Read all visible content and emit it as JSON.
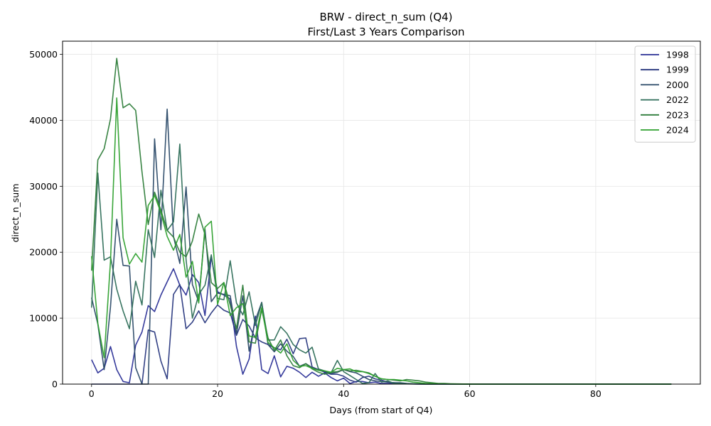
{
  "chart_data": {
    "type": "line",
    "title": "BRW - direct_n_sum (Q4)",
    "subtitle": "First/Last 3 Years Comparison",
    "xlabel": "Days (from start of Q4)",
    "ylabel": "direct_n_sum",
    "xlim": [
      -4.6,
      96.6
    ],
    "ylim": [
      0,
      52000
    ],
    "xticks": [
      "0",
      "20",
      "40",
      "60",
      "80"
    ],
    "yticks": [
      "0",
      "10000",
      "20000",
      "30000",
      "40000",
      "50000"
    ],
    "grid": true,
    "legend_position": "top-right",
    "series": [
      {
        "name": "1998",
        "color": "#2a2f96",
        "x": [
          0,
          1,
          2,
          3,
          4,
          5,
          6,
          7,
          8,
          9,
          10,
          11,
          12,
          13,
          14,
          15,
          16,
          17,
          18,
          19,
          20,
          21,
          22,
          23,
          24,
          25,
          26,
          27,
          28,
          29,
          30,
          31,
          32,
          33,
          34,
          35,
          36,
          37,
          38,
          39,
          40,
          41,
          42,
          43,
          44,
          45,
          46,
          47,
          48,
          49,
          50,
          51,
          52,
          53,
          54,
          55,
          56,
          57,
          58,
          59,
          60,
          61,
          62,
          63,
          64,
          65,
          66,
          67,
          68,
          69,
          70,
          71,
          72,
          73,
          74,
          75,
          76,
          77,
          78,
          79,
          80,
          81,
          82,
          83,
          84,
          85,
          86,
          87,
          88,
          89,
          90,
          91,
          92
        ],
        "y": [
          3700,
          1700,
          2400,
          5700,
          2200,
          400,
          200,
          5900,
          7900,
          11900,
          11000,
          13500,
          15500,
          17500,
          15000,
          13500,
          16600,
          15400,
          10400,
          19300,
          14000,
          13500,
          12900,
          5700,
          1500,
          3800,
          10300,
          2200,
          1600,
          4300,
          1100,
          2700,
          2400,
          1800,
          1000,
          1800,
          1200,
          1700,
          1000,
          500,
          900,
          100,
          400,
          400,
          200,
          300,
          100,
          100,
          50,
          50,
          30,
          20,
          10,
          10,
          0,
          0,
          0,
          0,
          0,
          0,
          0,
          0,
          0,
          0,
          0,
          0,
          0,
          0,
          0,
          0,
          0,
          0,
          0,
          0,
          0,
          0,
          0,
          0,
          0,
          0,
          0,
          0,
          0,
          0,
          0,
          0,
          0,
          0,
          0,
          0,
          0,
          0,
          0
        ]
      },
      {
        "name": "1999",
        "color": "#28377e",
        "x": [
          0,
          1,
          2,
          3,
          4,
          5,
          6,
          7,
          8,
          9,
          10,
          11,
          12,
          13,
          14,
          15,
          16,
          17,
          18,
          19,
          20,
          21,
          22,
          23,
          24,
          25,
          26,
          27,
          28,
          29,
          30,
          31,
          32,
          33,
          34,
          35,
          36,
          37,
          38,
          39,
          40,
          41,
          42,
          43,
          44,
          45,
          46,
          47,
          48,
          49,
          50,
          51,
          52,
          53,
          54,
          55,
          56,
          57,
          58,
          59,
          60,
          61,
          62,
          63,
          64,
          65,
          66,
          67,
          68,
          69,
          70,
          71,
          72,
          73,
          74,
          75,
          76,
          77,
          78,
          79,
          80,
          81,
          82,
          83,
          84,
          85,
          86,
          87,
          88,
          89,
          90,
          91,
          92
        ],
        "y": [
          0,
          0,
          0,
          0,
          0,
          0,
          0,
          0,
          0,
          8200,
          7900,
          3500,
          800,
          13600,
          15100,
          8400,
          9400,
          11100,
          9300,
          10800,
          12000,
          11200,
          10800,
          7400,
          9800,
          8800,
          7000,
          6400,
          6000,
          5500,
          5200,
          6800,
          4600,
          6900,
          7000,
          2600,
          2200,
          1800,
          1500,
          1500,
          1200,
          600,
          300,
          1000,
          1200,
          800,
          600,
          300,
          200,
          100,
          50,
          30,
          20,
          10,
          0,
          0,
          0,
          0,
          0,
          0,
          0,
          0,
          0,
          0,
          0,
          0,
          0,
          0,
          0,
          0,
          0,
          0,
          0,
          0,
          0,
          0,
          0,
          0,
          0,
          0,
          0,
          0,
          0,
          0,
          0,
          0,
          0,
          0,
          0,
          0,
          0,
          0,
          0
        ]
      },
      {
        "name": "2000",
        "color": "#2b4a68",
        "x": [
          0,
          1,
          2,
          3,
          4,
          5,
          6,
          7,
          8,
          9,
          10,
          11,
          12,
          13,
          14,
          15,
          16,
          17,
          18,
          19,
          20,
          21,
          22,
          23,
          24,
          25,
          26,
          27,
          28,
          29,
          30,
          31,
          32,
          33,
          34,
          35,
          36,
          37,
          38,
          39,
          40,
          41,
          42,
          43,
          44,
          45,
          46,
          47,
          48,
          49,
          50,
          51,
          52,
          53,
          54,
          55,
          56,
          57,
          58,
          59,
          60,
          61,
          62,
          63,
          64,
          65,
          66,
          67,
          68,
          69,
          70,
          71,
          72,
          73,
          74,
          75,
          76,
          77,
          78,
          79,
          80,
          81,
          82,
          83,
          84,
          85,
          86,
          87,
          88,
          89,
          90,
          91,
          92
        ],
        "y": [
          13100,
          9100,
          2200,
          11700,
          25000,
          18000,
          17900,
          2500,
          0,
          0,
          37200,
          23400,
          41700,
          22400,
          18300,
          29900,
          15100,
          12500,
          23500,
          12500,
          13800,
          13600,
          13400,
          7600,
          13400,
          5000,
          9700,
          12400,
          6000,
          4900,
          6100,
          5000,
          4200,
          2700,
          3100,
          2500,
          2100,
          1900,
          1600,
          1800,
          2200,
          1900,
          1700,
          1200,
          700,
          500,
          400,
          300,
          200,
          200,
          100,
          50,
          30,
          20,
          10,
          0,
          0,
          0,
          0,
          0,
          0,
          0,
          0,
          0,
          0,
          0,
          0,
          0,
          0,
          0,
          0,
          0,
          0,
          0,
          0,
          0,
          0,
          0,
          0,
          0,
          0,
          0,
          0,
          0,
          0,
          0,
          0,
          0,
          0,
          0,
          0,
          0,
          0
        ]
      },
      {
        "name": "2022",
        "color": "#2e6e58",
        "x": [
          0,
          1,
          2,
          3,
          4,
          5,
          6,
          7,
          8,
          9,
          10,
          11,
          12,
          13,
          14,
          15,
          16,
          17,
          18,
          19,
          20,
          21,
          22,
          23,
          24,
          25,
          26,
          27,
          28,
          29,
          30,
          31,
          32,
          33,
          34,
          35,
          36,
          37,
          38,
          39,
          40,
          41,
          42,
          43,
          44,
          45,
          46,
          47,
          48,
          49,
          50,
          51,
          52,
          53,
          54,
          55,
          56,
          57,
          58,
          59,
          60,
          61,
          62,
          63,
          64,
          65,
          66,
          67,
          68,
          69,
          70,
          71,
          72,
          73,
          74,
          75,
          76,
          77,
          78,
          79,
          80,
          81,
          82,
          83,
          84,
          85,
          86,
          87,
          88,
          89,
          90,
          91,
          92
        ],
        "y": [
          11600,
          32000,
          18800,
          19300,
          14400,
          11100,
          8400,
          15600,
          12000,
          23400,
          19200,
          29400,
          23300,
          24600,
          36400,
          18900,
          10000,
          13600,
          15000,
          19600,
          13000,
          12800,
          18700,
          12300,
          10500,
          14000,
          8900,
          12300,
          6700,
          6700,
          8700,
          7700,
          6000,
          5200,
          4700,
          5600,
          2300,
          2000,
          1700,
          3600,
          1900,
          1300,
          700,
          100,
          200,
          1600,
          300,
          500,
          100,
          100,
          50,
          30,
          20,
          10,
          0,
          0,
          0,
          0,
          0,
          0,
          0,
          0,
          0,
          0,
          0,
          0,
          0,
          0,
          0,
          0,
          0,
          0,
          0,
          0,
          0,
          0,
          0,
          0,
          0,
          0,
          0,
          0,
          0,
          0,
          0,
          0,
          0,
          0,
          0,
          0,
          0,
          0,
          0
        ]
      },
      {
        "name": "2023",
        "color": "#2e7d3a",
        "x": [
          0,
          1,
          2,
          3,
          4,
          5,
          6,
          7,
          8,
          9,
          10,
          11,
          12,
          13,
          14,
          15,
          16,
          17,
          18,
          19,
          20,
          21,
          22,
          23,
          24,
          25,
          26,
          27,
          28,
          29,
          30,
          31,
          32,
          33,
          34,
          35,
          36,
          37,
          38,
          39,
          40,
          41,
          42,
          43,
          44,
          45,
          46,
          47,
          48,
          49,
          50,
          51,
          52,
          53,
          54,
          55,
          56,
          57,
          58,
          59,
          60,
          61,
          62,
          63,
          64,
          65,
          66,
          67,
          68,
          69,
          70,
          71,
          72,
          73,
          74,
          75,
          76,
          77,
          78,
          79,
          80,
          81,
          82,
          83,
          84,
          85,
          86,
          87,
          88,
          89,
          90,
          91,
          92
        ],
        "y": [
          17200,
          34000,
          35700,
          40200,
          49400,
          41900,
          42500,
          41500,
          32200,
          24200,
          29100,
          26400,
          23300,
          22300,
          20000,
          19300,
          21700,
          25800,
          22700,
          15400,
          14500,
          15400,
          12000,
          8400,
          15000,
          6400,
          6200,
          11300,
          7000,
          5100,
          6700,
          4300,
          2800,
          2500,
          3100,
          2300,
          1800,
          1500,
          1800,
          1900,
          2200,
          2000,
          2100,
          1900,
          1700,
          1200,
          800,
          700,
          600,
          500,
          700,
          600,
          500,
          300,
          200,
          100,
          100,
          50,
          30,
          20,
          10,
          10,
          0,
          0,
          0,
          0,
          0,
          0,
          0,
          0,
          0,
          0,
          0,
          0,
          0,
          0,
          0,
          0,
          0,
          0,
          0,
          0,
          0,
          0,
          0,
          0,
          0,
          0,
          0,
          0,
          0,
          0,
          0
        ]
      },
      {
        "name": "2024",
        "color": "#2ea02e",
        "x": [
          0,
          1,
          2,
          3,
          4,
          5,
          6,
          7,
          8,
          9,
          10,
          11,
          12,
          13,
          14,
          15,
          16,
          17,
          18,
          19,
          20,
          21,
          22,
          23,
          24,
          25,
          26,
          27,
          28,
          29,
          30,
          31,
          32,
          33,
          34,
          35,
          36,
          37,
          38,
          39,
          40,
          41,
          42,
          43,
          44,
          45,
          46,
          47,
          48,
          49,
          50,
          51,
          52,
          53,
          54,
          55,
          56,
          57,
          58,
          59,
          60,
          61,
          62,
          63,
          64,
          65,
          66,
          67,
          68,
          69,
          70,
          71,
          72,
          73,
          74,
          75,
          76,
          77,
          78,
          79,
          80,
          81,
          82,
          83,
          84,
          85,
          86,
          87,
          88,
          89,
          90,
          91,
          92
        ],
        "y": [
          19400,
          9200,
          4000,
          18600,
          43400,
          22200,
          18200,
          19800,
          18500,
          27100,
          28600,
          26000,
          22400,
          20300,
          22700,
          16200,
          18600,
          12300,
          23800,
          24700,
          12100,
          15400,
          10400,
          11600,
          12200,
          7300,
          7100,
          11600,
          6300,
          5500,
          4700,
          6100,
          3600,
          2700,
          2800,
          2400,
          2100,
          2000,
          1800,
          2400,
          2200,
          2300,
          1900,
          1900,
          1600,
          1200,
          800,
          700,
          700,
          600,
          500,
          300,
          200,
          100,
          100,
          50,
          30,
          20,
          10,
          10,
          0,
          0,
          0,
          0,
          0,
          0,
          0,
          0,
          0,
          0,
          0,
          0,
          0,
          0,
          0,
          0,
          0,
          0,
          0,
          0,
          0,
          0,
          0,
          0,
          0,
          0,
          0,
          0,
          0,
          0,
          0,
          0,
          0
        ]
      }
    ]
  }
}
